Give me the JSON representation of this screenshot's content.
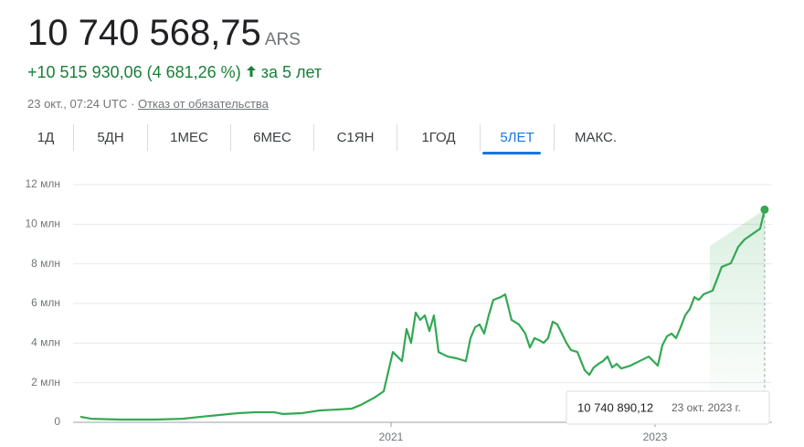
{
  "header": {
    "price": "10 740 568,75",
    "currency": "ARS",
    "change": "+10 515 930,06 (4 681,26 %)",
    "period": "за 5 лет",
    "timestamp": "23 окт., 07:24 UTC",
    "separator": "·",
    "disclaimer": "Отказ от обязательства"
  },
  "tabs": {
    "items": [
      "1Д",
      "5ДН",
      "1МЕС",
      "6МЕС",
      "С1ЯН",
      "1ГОД",
      "5ЛЕТ",
      "МАКС."
    ],
    "active": 6
  },
  "tooltip": {
    "value": "10 740 890,12",
    "date": "23 окт. 2023 г."
  },
  "chart_data": {
    "type": "line",
    "color": "#34a853",
    "grid": true,
    "x": [
      2018.647,
      2018.73,
      2018.938,
      2019.215,
      2019.422,
      2019.561,
      2019.699,
      2019.837,
      2019.976,
      2020.114,
      2020.183,
      2020.322,
      2020.46,
      2020.599,
      2020.702,
      2020.772,
      2020.875,
      2020.945,
      2021.014,
      2021.083,
      2021.118,
      2021.152,
      2021.187,
      2021.221,
      2021.256,
      2021.291,
      2021.325,
      2021.36,
      2021.429,
      2021.498,
      2021.567,
      2021.602,
      2021.637,
      2021.671,
      2021.706,
      2021.74,
      2021.775,
      2021.83,
      2021.865,
      2021.913,
      2021.969,
      2022.017,
      2022.052,
      2022.087,
      2022.121,
      2022.156,
      2022.19,
      2022.225,
      2022.26,
      2022.329,
      2022.363,
      2022.412,
      2022.467,
      2022.502,
      2022.536,
      2022.571,
      2022.606,
      2022.64,
      2022.675,
      2022.709,
      2022.744,
      2022.813,
      2022.882,
      2022.952,
      2023.021,
      2023.055,
      2023.09,
      2023.125,
      2023.159,
      2023.194,
      2023.228,
      2023.263,
      2023.298,
      2023.332,
      2023.367,
      2023.436,
      2023.471,
      2023.505,
      2023.574,
      2023.63,
      2023.678,
      2023.747,
      2023.796,
      2023.83
    ],
    "values": [
      0.28,
      0.18,
      0.14,
      0.14,
      0.18,
      0.28,
      0.37,
      0.46,
      0.51,
      0.51,
      0.42,
      0.46,
      0.6,
      0.65,
      0.69,
      0.88,
      1.25,
      1.57,
      3.55,
      3.09,
      4.71,
      4.01,
      5.54,
      5.17,
      5.4,
      4.61,
      5.4,
      3.55,
      3.32,
      3.23,
      3.09,
      4.25,
      4.8,
      4.94,
      4.48,
      5.4,
      6.18,
      6.32,
      6.46,
      5.17,
      4.94,
      4.48,
      3.78,
      4.25,
      4.15,
      4.01,
      4.25,
      5.08,
      4.94,
      4.01,
      3.65,
      3.55,
      2.63,
      2.4,
      2.77,
      2.95,
      3.09,
      3.32,
      2.77,
      2.95,
      2.72,
      2.86,
      3.09,
      3.32,
      2.86,
      3.88,
      4.34,
      4.48,
      4.25,
      4.8,
      5.4,
      5.72,
      6.32,
      6.18,
      6.46,
      6.65,
      7.25,
      7.85,
      8.03,
      8.86,
      9.23,
      9.55,
      9.78,
      10.74
    ],
    "xlim": [
      2018.592,
      2023.886
    ],
    "xticks": [
      2021,
      2023
    ],
    "ylim": [
      0,
      12
    ],
    "yticks": [
      0,
      {
        "value": 2,
        "label": "2 млн"
      },
      {
        "value": 4,
        "label": "4 млн"
      },
      {
        "value": 6,
        "label": "6 млн"
      },
      {
        "value": 8,
        "label": "8 млн"
      },
      {
        "value": 10,
        "label": "10 млн"
      },
      {
        "value": 12,
        "label": "12 млн"
      }
    ]
  }
}
